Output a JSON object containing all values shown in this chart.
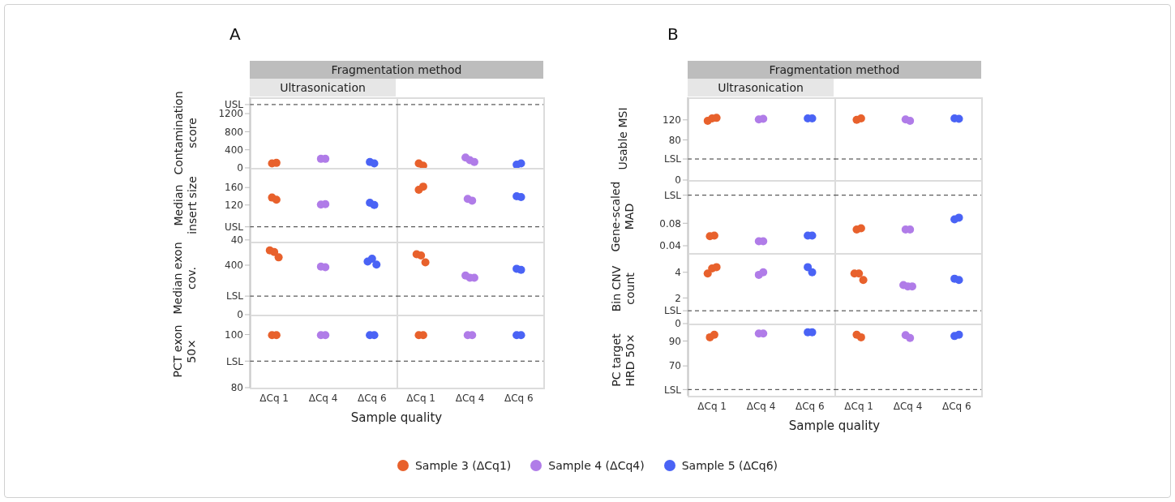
{
  "chart_data": [
    {
      "type": "scatter",
      "title": "A",
      "annotations": [
        "Fragmentation method"
      ],
      "subtitle": "Ultrasonication",
      "ylabel": "Contamination score",
      "legend": "bottom",
      "marker": "circle",
      "categories": [
        "ΔCq 1",
        "ΔCq 4",
        "ΔCq 6"
      ],
      "tick_labels": "y",
      "ylim": [
        0,
        1560
      ],
      "yticks": [
        0,
        400,
        800,
        1200,
        {
          "value": 1400,
          "label": "USL"
        }
      ],
      "ref_lines": [
        {
          "axis": "y",
          "value": 1400,
          "color": "#333333",
          "line_style": "dashed"
        }
      ],
      "series": [
        {
          "name": "Sample 3 (ΔCq1)",
          "color": "#e8612c",
          "x": [
            "ΔCq 1",
            "ΔCq 1"
          ],
          "values": [
            100,
            110
          ]
        },
        {
          "name": "Sample 4 (ΔCq4)",
          "color": "#b07ce8",
          "x": [
            "ΔCq 4",
            "ΔCq 4"
          ],
          "values": [
            200,
            200
          ]
        },
        {
          "name": "Sample 5 (ΔCq6)",
          "color": "#4a63f5",
          "x": [
            "ΔCq 6",
            "ΔCq 6"
          ],
          "values": [
            130,
            100
          ]
        }
      ]
    },
    {
      "type": "scatter",
      "marker": "circle",
      "categories": [
        "ΔCq 1",
        "ΔCq 4",
        "ΔCq 6"
      ],
      "tick_labels": false,
      "ylim": [
        0,
        1560
      ],
      "ref_lines": [
        {
          "axis": "y",
          "value": 1400,
          "color": "#333333",
          "line_style": "dashed"
        }
      ],
      "series": [
        {
          "color": "#e8612c",
          "x": [
            "ΔCq 1",
            "ΔCq 1"
          ],
          "values": [
            100,
            50
          ]
        },
        {
          "color": "#b07ce8",
          "x": [
            "ΔCq 4",
            "ΔCq 4",
            "ΔCq 4"
          ],
          "values": [
            230,
            170,
            130
          ]
        },
        {
          "color": "#4a63f5",
          "x": [
            "ΔCq 6",
            "ΔCq 6"
          ],
          "values": [
            70,
            100
          ]
        }
      ]
    },
    {
      "type": "scatter",
      "ylabel": "Median insert size",
      "marker": "circle",
      "categories": [
        "ΔCq 1",
        "ΔCq 4",
        "ΔCq 6"
      ],
      "tick_labels": "y",
      "ylim": [
        36,
        205
      ],
      "yticks": [
        40,
        {
          "value": 70,
          "label": "USL"
        },
        120,
        160
      ],
      "ref_lines": [
        {
          "axis": "y",
          "value": 70,
          "color": "#333333",
          "line_style": "dashed"
        }
      ],
      "series": [
        {
          "color": "#e8612c",
          "x": [
            "ΔCq 1",
            "ΔCq 1"
          ],
          "values": [
            137,
            132
          ]
        },
        {
          "color": "#b07ce8",
          "x": [
            "ΔCq 4",
            "ΔCq 4"
          ],
          "values": [
            121,
            122
          ]
        },
        {
          "color": "#4a63f5",
          "x": [
            "ΔCq 6",
            "ΔCq 6"
          ],
          "values": [
            125,
            120
          ]
        }
      ]
    },
    {
      "type": "scatter",
      "marker": "circle",
      "categories": [
        "ΔCq 1",
        "ΔCq 4",
        "ΔCq 6"
      ],
      "tick_labels": false,
      "ylim": [
        36,
        205
      ],
      "ref_lines": [
        {
          "axis": "y",
          "value": 70,
          "color": "#333333",
          "line_style": "dashed"
        }
      ],
      "series": [
        {
          "color": "#e8612c",
          "x": [
            "ΔCq 1",
            "ΔCq 1"
          ],
          "values": [
            155,
            162
          ]
        },
        {
          "color": "#b07ce8",
          "x": [
            "ΔCq 4",
            "ΔCq 4"
          ],
          "values": [
            134,
            130
          ]
        },
        {
          "color": "#4a63f5",
          "x": [
            "ΔCq 6",
            "ΔCq 6"
          ],
          "values": [
            140,
            138
          ]
        }
      ]
    },
    {
      "type": "scatter",
      "ylabel": "Median exon cov.",
      "marker": "circle",
      "categories": [
        "ΔCq 1",
        "ΔCq 4",
        "ΔCq 6"
      ],
      "tick_labels": "y",
      "ylim": [
        0,
        590
      ],
      "yticks": [
        0,
        {
          "value": 150,
          "label": "LSL"
        },
        400
      ],
      "ref_lines": [
        {
          "axis": "y",
          "value": 150,
          "color": "#333333",
          "line_style": "dashed"
        }
      ],
      "series": [
        {
          "color": "#e8612c",
          "x": [
            "ΔCq 1",
            "ΔCq 1",
            "ΔCq 1"
          ],
          "values": [
            520,
            506,
            463
          ]
        },
        {
          "color": "#b07ce8",
          "x": [
            "ΔCq 4",
            "ΔCq 4"
          ],
          "values": [
            389,
            384
          ]
        },
        {
          "color": "#4a63f5",
          "x": [
            "ΔCq 6",
            "ΔCq 6",
            "ΔCq 6"
          ],
          "values": [
            429,
            452,
            405
          ]
        }
      ]
    },
    {
      "type": "scatter",
      "marker": "circle",
      "categories": [
        "ΔCq 1",
        "ΔCq 4",
        "ΔCq 6"
      ],
      "tick_labels": false,
      "ylim": [
        0,
        590
      ],
      "ref_lines": [
        {
          "axis": "y",
          "value": 150,
          "color": "#333333",
          "line_style": "dashed"
        }
      ],
      "series": [
        {
          "color": "#e8612c",
          "x": [
            "ΔCq 1",
            "ΔCq 1",
            "ΔCq 1"
          ],
          "values": [
            488,
            479,
            423
          ]
        },
        {
          "color": "#b07ce8",
          "x": [
            "ΔCq 4",
            "ΔCq 4",
            "ΔCq 4"
          ],
          "values": [
            316,
            298,
            298
          ]
        },
        {
          "color": "#4a63f5",
          "x": [
            "ΔCq 6",
            "ΔCq 6"
          ],
          "values": [
            371,
            362
          ]
        }
      ]
    },
    {
      "type": "scatter",
      "ylabel": "PCT exon 50×",
      "xlabel": "Sample quality",
      "marker": "circle",
      "categories": [
        "ΔCq 1",
        "ΔCq 4",
        "ΔCq 6"
      ],
      "ylim": [
        80,
        107.5
      ],
      "yticks": [
        80,
        {
          "value": 90,
          "label": "LSL"
        },
        100
      ],
      "ref_lines": [
        {
          "axis": "y",
          "value": 90,
          "color": "#333333",
          "line_style": "dashed"
        }
      ],
      "series": [
        {
          "color": "#e8612c",
          "x": [
            "ΔCq 1",
            "ΔCq 1"
          ],
          "values": [
            99.8,
            99.8
          ]
        },
        {
          "color": "#b07ce8",
          "x": [
            "ΔCq 4",
            "ΔCq 4"
          ],
          "values": [
            99.8,
            99.8
          ]
        },
        {
          "color": "#4a63f5",
          "x": [
            "ΔCq 6",
            "ΔCq 6"
          ],
          "values": [
            99.8,
            99.8
          ]
        }
      ]
    },
    {
      "type": "scatter",
      "marker": "circle",
      "categories": [
        "ΔCq 1",
        "ΔCq 4",
        "ΔCq 6"
      ],
      "tick_labels": "x",
      "ylim": [
        80,
        107.5
      ],
      "ref_lines": [
        {
          "axis": "y",
          "value": 90,
          "color": "#333333",
          "line_style": "dashed"
        }
      ],
      "series": [
        {
          "color": "#e8612c",
          "x": [
            "ΔCq 1",
            "ΔCq 1"
          ],
          "values": [
            99.8,
            99.8
          ]
        },
        {
          "color": "#b07ce8",
          "x": [
            "ΔCq 4",
            "ΔCq 4"
          ],
          "values": [
            99.8,
            99.8
          ]
        },
        {
          "color": "#4a63f5",
          "x": [
            "ΔCq 6",
            "ΔCq 6"
          ],
          "values": [
            99.8,
            99.8
          ]
        }
      ]
    },
    {
      "type": "scatter",
      "title": "B",
      "annotations": [
        "Fragmentation method"
      ],
      "subtitle": "Ultrasonication",
      "ylabel": "Usable MSI",
      "marker": "circle",
      "categories": [
        "ΔCq 1",
        "ΔCq 4",
        "ΔCq 6"
      ],
      "tick_labels": "y",
      "ylim": [
        0,
        165
      ],
      "yticks": [
        0,
        {
          "value": 42,
          "label": "LSL"
        },
        80,
        120
      ],
      "ref_lines": [
        {
          "axis": "y",
          "value": 42,
          "color": "#333333",
          "line_style": "dashed"
        }
      ],
      "series": [
        {
          "color": "#e8612c",
          "x": [
            "ΔCq 1",
            "ΔCq 1",
            "ΔCq 1"
          ],
          "values": [
            118,
            123,
            124
          ]
        },
        {
          "color": "#b07ce8",
          "x": [
            "ΔCq 4",
            "ΔCq 4"
          ],
          "values": [
            121,
            122
          ]
        },
        {
          "color": "#4a63f5",
          "x": [
            "ΔCq 6",
            "ΔCq 6"
          ],
          "values": [
            123,
            123
          ]
        }
      ]
    },
    {
      "type": "scatter",
      "marker": "circle",
      "categories": [
        "ΔCq 1",
        "ΔCq 4",
        "ΔCq 6"
      ],
      "tick_labels": false,
      "ylim": [
        0,
        165
      ],
      "ref_lines": [
        {
          "axis": "y",
          "value": 42,
          "color": "#333333",
          "line_style": "dashed"
        }
      ],
      "series": [
        {
          "color": "#e8612c",
          "x": [
            "ΔCq 1",
            "ΔCq 1"
          ],
          "values": [
            120,
            123
          ]
        },
        {
          "color": "#b07ce8",
          "x": [
            "ΔCq 4",
            "ΔCq 4"
          ],
          "values": [
            121,
            118
          ]
        },
        {
          "color": "#4a63f5",
          "x": [
            "ΔCq 6",
            "ΔCq 6"
          ],
          "values": [
            123,
            122
          ]
        }
      ]
    },
    {
      "type": "scatter",
      "ylabel": "Gene-scaled MAD",
      "marker": "circle",
      "categories": [
        "ΔCq 1",
        "ΔCq 4",
        "ΔCq 6"
      ],
      "tick_labels": "y",
      "ylim": [
        0.027,
        0.157
      ],
      "yticks": [
        0.04,
        0.08,
        {
          "value": 0.13,
          "label": "LSL"
        }
      ],
      "ref_lines": [
        {
          "axis": "y",
          "value": 0.13,
          "color": "#333333",
          "line_style": "dashed"
        }
      ],
      "series": [
        {
          "color": "#e8612c",
          "x": [
            "ΔCq 1",
            "ΔCq 1"
          ],
          "values": [
            0.057,
            0.058
          ]
        },
        {
          "color": "#b07ce8",
          "x": [
            "ΔCq 4",
            "ΔCq 4"
          ],
          "values": [
            0.048,
            0.048
          ]
        },
        {
          "color": "#4a63f5",
          "x": [
            "ΔCq 6",
            "ΔCq 6"
          ],
          "values": [
            0.058,
            0.058
          ]
        }
      ]
    },
    {
      "type": "scatter",
      "marker": "circle",
      "categories": [
        "ΔCq 1",
        "ΔCq 4",
        "ΔCq 6"
      ],
      "tick_labels": false,
      "ylim": [
        0.027,
        0.157
      ],
      "ref_lines": [
        {
          "axis": "y",
          "value": 0.13,
          "color": "#333333",
          "line_style": "dashed"
        }
      ],
      "series": [
        {
          "color": "#e8612c",
          "x": [
            "ΔCq 1",
            "ΔCq 1"
          ],
          "values": [
            0.069,
            0.071
          ]
        },
        {
          "color": "#b07ce8",
          "x": [
            "ΔCq 4",
            "ΔCq 4"
          ],
          "values": [
            0.069,
            0.069
          ]
        },
        {
          "color": "#4a63f5",
          "x": [
            "ΔCq 6",
            "ΔCq 6"
          ],
          "values": [
            0.087,
            0.09
          ]
        }
      ]
    },
    {
      "type": "scatter",
      "ylabel": "Bin CNV count",
      "marker": "circle",
      "categories": [
        "ΔCq 1",
        "ΔCq 4",
        "ΔCq 6"
      ],
      "tick_labels": "y",
      "ylim": [
        0,
        5.5
      ],
      "yticks": [
        0,
        {
          "value": 1,
          "label": "LSL"
        },
        2,
        4
      ],
      "ref_lines": [
        {
          "axis": "y",
          "value": 1,
          "color": "#333333",
          "line_style": "dashed"
        }
      ],
      "series": [
        {
          "color": "#e8612c",
          "x": [
            "ΔCq 1",
            "ΔCq 1",
            "ΔCq 1"
          ],
          "values": [
            3.9,
            4.3,
            4.4
          ]
        },
        {
          "color": "#b07ce8",
          "x": [
            "ΔCq 4",
            "ΔCq 4"
          ],
          "values": [
            3.8,
            4
          ]
        },
        {
          "color": "#4a63f5",
          "x": [
            "ΔCq 6",
            "ΔCq 6"
          ],
          "values": [
            4.4,
            4
          ]
        }
      ]
    },
    {
      "type": "scatter",
      "marker": "circle",
      "categories": [
        "ΔCq 1",
        "ΔCq 4",
        "ΔCq 6"
      ],
      "tick_labels": false,
      "ylim": [
        0,
        5.5
      ],
      "ref_lines": [
        {
          "axis": "y",
          "value": 1,
          "color": "#333333",
          "line_style": "dashed"
        }
      ],
      "series": [
        {
          "color": "#e8612c",
          "x": [
            "ΔCq 1",
            "ΔCq 1",
            "ΔCq 1"
          ],
          "values": [
            3.9,
            3.9,
            3.4
          ]
        },
        {
          "color": "#b07ce8",
          "x": [
            "ΔCq 4",
            "ΔCq 4",
            "ΔCq 4"
          ],
          "values": [
            3,
            2.9,
            2.9
          ]
        },
        {
          "color": "#4a63f5",
          "x": [
            "ΔCq 6",
            "ΔCq 6"
          ],
          "values": [
            3.5,
            3.4
          ]
        }
      ]
    },
    {
      "type": "scatter",
      "ylabel": "PC target HRD 50×",
      "xlabel": "Sample quality",
      "marker": "circle",
      "categories": [
        "ΔCq 1",
        "ΔCq 4",
        "ΔCq 6"
      ],
      "ylim": [
        46,
        104
      ],
      "yticks": [
        {
          "value": 51,
          "label": "LSL"
        },
        70,
        90
      ],
      "ref_lines": [
        {
          "axis": "y",
          "value": 51,
          "color": "#333333",
          "line_style": "dashed"
        }
      ],
      "series": [
        {
          "color": "#e8612c",
          "x": [
            "ΔCq 1",
            "ΔCq 1"
          ],
          "values": [
            93,
            95
          ]
        },
        {
          "color": "#b07ce8",
          "x": [
            "ΔCq 4",
            "ΔCq 4"
          ],
          "values": [
            96,
            96
          ]
        },
        {
          "color": "#4a63f5",
          "x": [
            "ΔCq 6",
            "ΔCq 6"
          ],
          "values": [
            97,
            97
          ]
        }
      ]
    },
    {
      "type": "scatter",
      "marker": "circle",
      "categories": [
        "ΔCq 1",
        "ΔCq 4",
        "ΔCq 6"
      ],
      "tick_labels": "x",
      "ylim": [
        46,
        104
      ],
      "ref_lines": [
        {
          "axis": "y",
          "value": 51,
          "color": "#333333",
          "line_style": "dashed"
        }
      ],
      "series": [
        {
          "color": "#e8612c",
          "x": [
            "ΔCq 1",
            "ΔCq 1"
          ],
          "values": [
            95,
            93
          ]
        },
        {
          "color": "#b07ce8",
          "x": [
            "ΔCq 4",
            "ΔCq 4"
          ],
          "values": [
            94.7,
            92.4
          ]
        },
        {
          "color": "#4a63f5",
          "x": [
            "ΔCq 6",
            "ΔCq 6"
          ],
          "values": [
            94,
            95
          ]
        }
      ]
    }
  ]
}
